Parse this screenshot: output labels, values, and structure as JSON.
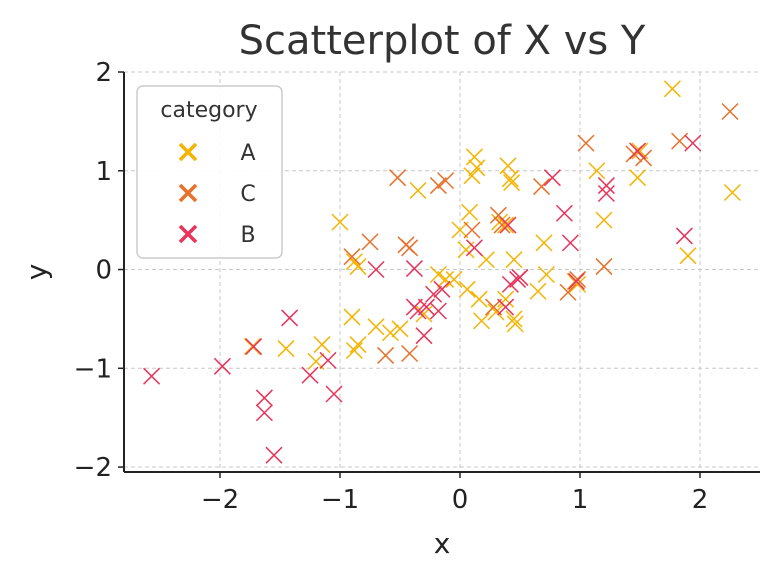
{
  "chart_data": {
    "type": "scatter",
    "title": "Scatterplot of X vs Y",
    "xlabel": "x",
    "ylabel": "y",
    "xlim": [
      -2.8,
      2.5
    ],
    "ylim": [
      -2.05,
      2.0
    ],
    "xticks": [
      -2,
      -1,
      0,
      1,
      2
    ],
    "yticks": [
      -2,
      -1,
      0,
      1,
      2
    ],
    "xtick_labels": [
      "−2",
      "−1",
      "0",
      "1",
      "2"
    ],
    "ytick_labels": [
      "−2",
      "−1",
      "0",
      "1",
      "2"
    ],
    "grid": true,
    "marker": "x",
    "legend": {
      "title": "category",
      "placement": "top-left"
    },
    "series": [
      {
        "name": "A",
        "color": "#f5b400",
        "points": [
          [
            -1.0,
            0.48
          ],
          [
            -0.9,
            -0.48
          ],
          [
            -0.88,
            0.08
          ],
          [
            -0.85,
            0.03
          ],
          [
            -0.88,
            -0.82
          ],
          [
            -0.85,
            -0.76
          ],
          [
            -0.7,
            -0.58
          ],
          [
            -0.58,
            -0.64
          ],
          [
            -0.5,
            -0.6
          ],
          [
            -0.35,
            0.8
          ],
          [
            -1.45,
            -0.8
          ],
          [
            -1.73,
            -0.78
          ],
          [
            -1.15,
            -0.76
          ],
          [
            -1.2,
            -0.93
          ],
          [
            -0.18,
            -0.05
          ],
          [
            -0.12,
            -0.1
          ],
          [
            -0.05,
            -0.1
          ],
          [
            0.0,
            0.4
          ],
          [
            0.05,
            0.2
          ],
          [
            0.06,
            -0.2
          ],
          [
            0.08,
            0.58
          ],
          [
            0.1,
            0.95
          ],
          [
            0.12,
            1.14
          ],
          [
            0.14,
            1.03
          ],
          [
            0.16,
            -0.3
          ],
          [
            0.18,
            -0.52
          ],
          [
            0.22,
            0.1
          ],
          [
            0.3,
            -0.43
          ],
          [
            0.33,
            0.48
          ],
          [
            0.38,
            0.45
          ],
          [
            0.4,
            1.05
          ],
          [
            0.42,
            0.92
          ],
          [
            0.43,
            0.88
          ],
          [
            0.45,
            0.1
          ],
          [
            0.45,
            -0.5
          ],
          [
            0.46,
            -0.55
          ],
          [
            0.38,
            -0.3
          ],
          [
            0.65,
            -0.22
          ],
          [
            0.7,
            0.27
          ],
          [
            0.72,
            -0.05
          ],
          [
            0.96,
            -0.12
          ],
          [
            0.98,
            -0.15
          ],
          [
            1.14,
            1.0
          ],
          [
            1.2,
            0.5
          ],
          [
            1.48,
            0.93
          ],
          [
            1.5,
            1.2
          ],
          [
            1.77,
            1.83
          ],
          [
            1.9,
            0.14
          ],
          [
            2.27,
            0.78
          ],
          [
            -0.3,
            -0.45
          ]
        ]
      },
      {
        "name": "C",
        "color": "#e8702a",
        "points": [
          [
            -0.9,
            0.13
          ],
          [
            -0.75,
            0.28
          ],
          [
            -0.62,
            -0.87
          ],
          [
            -0.45,
            0.25
          ],
          [
            -0.42,
            0.22
          ],
          [
            -0.42,
            -0.85
          ],
          [
            -0.52,
            0.93
          ],
          [
            -0.18,
            0.85
          ],
          [
            -0.12,
            0.9
          ],
          [
            0.1,
            0.4
          ],
          [
            0.28,
            -0.38
          ],
          [
            0.32,
            0.55
          ],
          [
            0.35,
            0.45
          ],
          [
            0.68,
            0.84
          ],
          [
            0.9,
            -0.23
          ],
          [
            0.98,
            -0.1
          ],
          [
            1.05,
            1.28
          ],
          [
            1.2,
            0.03
          ],
          [
            1.45,
            1.17
          ],
          [
            1.53,
            1.13
          ],
          [
            1.83,
            1.3
          ],
          [
            2.25,
            1.6
          ]
        ]
      },
      {
        "name": "B",
        "color": "#e8345a",
        "points": [
          [
            -2.57,
            -1.08
          ],
          [
            -1.98,
            -0.98
          ],
          [
            -1.72,
            -0.78
          ],
          [
            -1.63,
            -1.3
          ],
          [
            -1.63,
            -1.45
          ],
          [
            -1.55,
            -1.88
          ],
          [
            -1.42,
            -0.49
          ],
          [
            -1.25,
            -1.07
          ],
          [
            -1.1,
            -0.92
          ],
          [
            -1.05,
            -1.26
          ],
          [
            -0.7,
            -0.0
          ],
          [
            -0.38,
            0.01
          ],
          [
            -0.38,
            -0.38
          ],
          [
            -0.35,
            -0.42
          ],
          [
            -0.3,
            -0.67
          ],
          [
            -0.28,
            -0.38
          ],
          [
            -0.22,
            -0.25
          ],
          [
            -0.18,
            -0.42
          ],
          [
            -0.15,
            -0.2
          ],
          [
            0.12,
            0.22
          ],
          [
            0.38,
            -0.38
          ],
          [
            0.4,
            0.45
          ],
          [
            0.42,
            -0.15
          ],
          [
            0.48,
            -0.1
          ],
          [
            0.5,
            -0.08
          ],
          [
            0.77,
            0.93
          ],
          [
            0.87,
            0.57
          ],
          [
            0.92,
            0.27
          ],
          [
            0.97,
            -0.12
          ],
          [
            1.22,
            0.85
          ],
          [
            1.22,
            0.77
          ],
          [
            1.48,
            1.2
          ],
          [
            1.87,
            0.34
          ],
          [
            1.94,
            1.28
          ]
        ]
      }
    ]
  }
}
